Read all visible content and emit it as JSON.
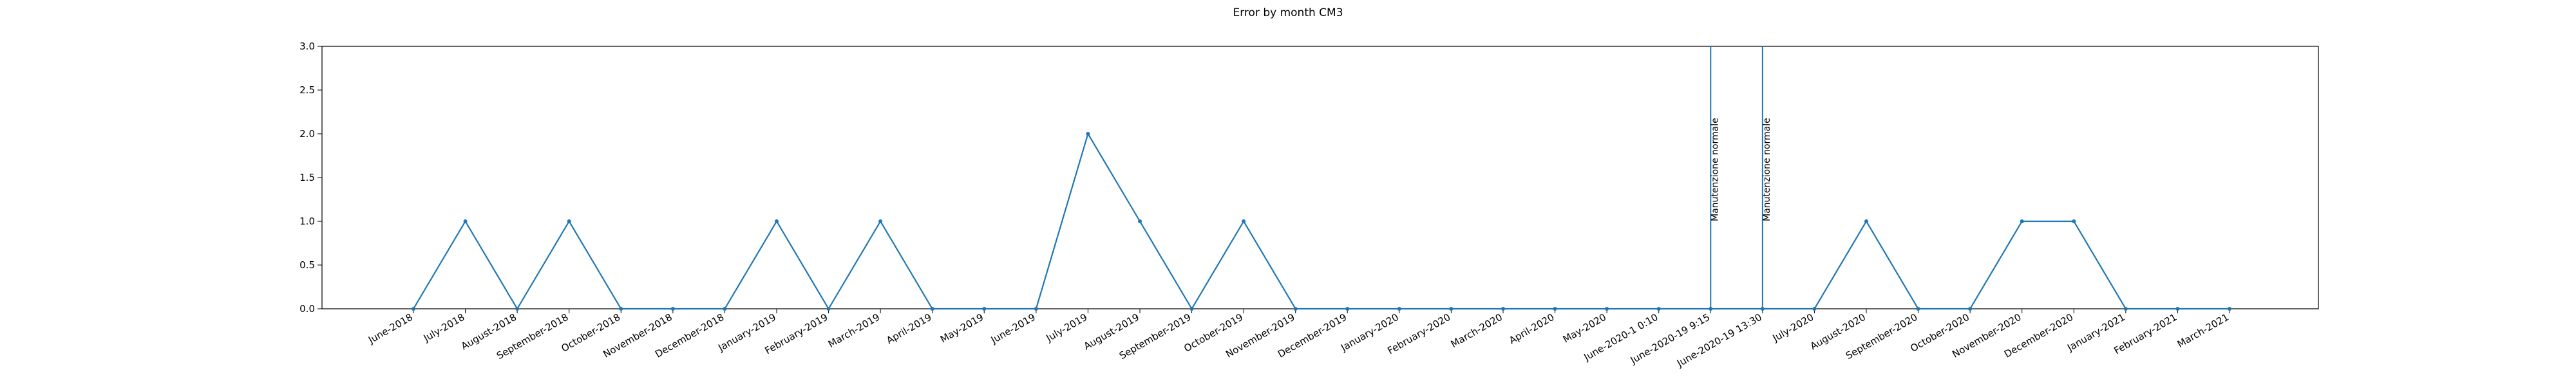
{
  "chart_data": {
    "type": "line",
    "title": "Error by month CM3",
    "xlabel": "",
    "ylabel": "",
    "ylim": [
      0,
      3.0
    ],
    "yticks": [
      "0.0",
      "0.5",
      "1.0",
      "1.5",
      "2.0",
      "2.5",
      "3.0"
    ],
    "grid": false,
    "line_color": "#1f77b4",
    "categories": [
      "June-2018",
      "July-2018",
      "August-2018",
      "September-2018",
      "October-2018",
      "November-2018",
      "December-2018",
      "January-2019",
      "February-2019",
      "March-2019",
      "April-2019",
      "May-2019",
      "June-2019",
      "July-2019",
      "August-2019",
      "September-2019",
      "October-2019",
      "November-2019",
      "December-2019",
      "January-2020",
      "February-2020",
      "March-2020",
      "April-2020",
      "May-2020",
      "June-2020-1 0:10",
      "June-2020-19 9:15",
      "June-2020-19 13:30",
      "July-2020",
      "August-2020",
      "September-2020",
      "October-2020",
      "November-2020",
      "December-2020",
      "January-2021",
      "February-2021",
      "March-2021"
    ],
    "values": [
      0,
      1,
      0,
      1,
      0,
      0,
      0,
      1,
      0,
      1,
      0,
      0,
      0,
      2,
      1,
      0,
      1,
      0,
      0,
      0,
      0,
      0,
      0,
      0,
      0,
      0,
      0,
      0,
      1,
      0,
      0,
      1,
      1,
      0,
      0,
      0
    ],
    "vlines": [
      {
        "category": "June-2020-19 9:15",
        "label": "Manutenzione normale"
      },
      {
        "category": "June-2020-19 13:30",
        "label": "Manutenzione normale"
      }
    ]
  }
}
